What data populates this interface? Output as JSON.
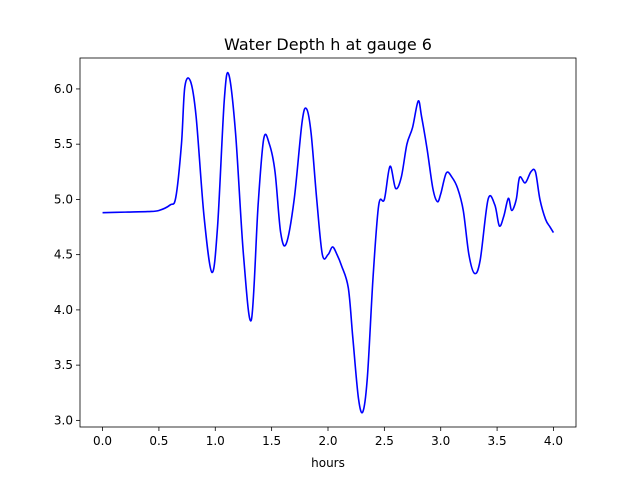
{
  "chart_data": {
    "type": "line",
    "title": "Water Depth h at gauge 6",
    "xlabel": "hours",
    "ylabel": "",
    "xlim": [
      -0.2,
      4.2
    ],
    "ylim": [
      2.94,
      6.28
    ],
    "xticks": [
      0.0,
      0.5,
      1.0,
      1.5,
      2.0,
      2.5,
      3.0,
      3.5,
      4.0
    ],
    "xtick_labels": [
      "0.0",
      "0.5",
      "1.0",
      "1.5",
      "2.0",
      "2.5",
      "3.0",
      "3.5",
      "4.0"
    ],
    "yticks": [
      3.0,
      3.5,
      4.0,
      4.5,
      5.0,
      5.5,
      6.0
    ],
    "ytick_labels": [
      "3.0",
      "3.5",
      "4.0",
      "4.5",
      "5.0",
      "5.5",
      "6.0"
    ],
    "grid": false,
    "series": [
      {
        "color": "#0000ff",
        "x": [
          0.0,
          0.2,
          0.4,
          0.5,
          0.6,
          0.65,
          0.7,
          0.73,
          0.78,
          0.83,
          0.9,
          0.97,
          1.02,
          1.08,
          1.12,
          1.18,
          1.25,
          1.32,
          1.38,
          1.43,
          1.48,
          1.53,
          1.58,
          1.63,
          1.7,
          1.77,
          1.81,
          1.85,
          1.9,
          1.95,
          2.0,
          2.04,
          2.08,
          2.12,
          2.18,
          2.22,
          2.27,
          2.31,
          2.35,
          2.4,
          2.45,
          2.5,
          2.55,
          2.6,
          2.65,
          2.7,
          2.75,
          2.8,
          2.83,
          2.88,
          2.93,
          2.97,
          3.0,
          3.05,
          3.1,
          3.15,
          3.2,
          3.25,
          3.3,
          3.35,
          3.42,
          3.48,
          3.52,
          3.56,
          3.6,
          3.63,
          3.67,
          3.7,
          3.75,
          3.8,
          3.84,
          3.88,
          3.93,
          3.97,
          4.0
        ],
        "y": [
          4.88,
          4.885,
          4.89,
          4.9,
          4.95,
          5.02,
          5.5,
          6.02,
          6.07,
          5.75,
          4.85,
          4.34,
          4.75,
          5.9,
          6.13,
          5.6,
          4.5,
          3.91,
          4.95,
          5.55,
          5.5,
          5.25,
          4.7,
          4.6,
          5.0,
          5.7,
          5.82,
          5.6,
          5.0,
          4.5,
          4.5,
          4.57,
          4.5,
          4.4,
          4.2,
          3.75,
          3.2,
          3.08,
          3.4,
          4.3,
          4.95,
          5.0,
          5.3,
          5.1,
          5.2,
          5.5,
          5.65,
          5.89,
          5.75,
          5.45,
          5.1,
          4.98,
          5.05,
          5.24,
          5.2,
          5.1,
          4.9,
          4.5,
          4.33,
          4.45,
          5.0,
          4.95,
          4.76,
          4.85,
          5.01,
          4.9,
          5.0,
          5.2,
          5.15,
          5.25,
          5.25,
          5.0,
          4.82,
          4.75,
          4.7
        ]
      }
    ]
  }
}
